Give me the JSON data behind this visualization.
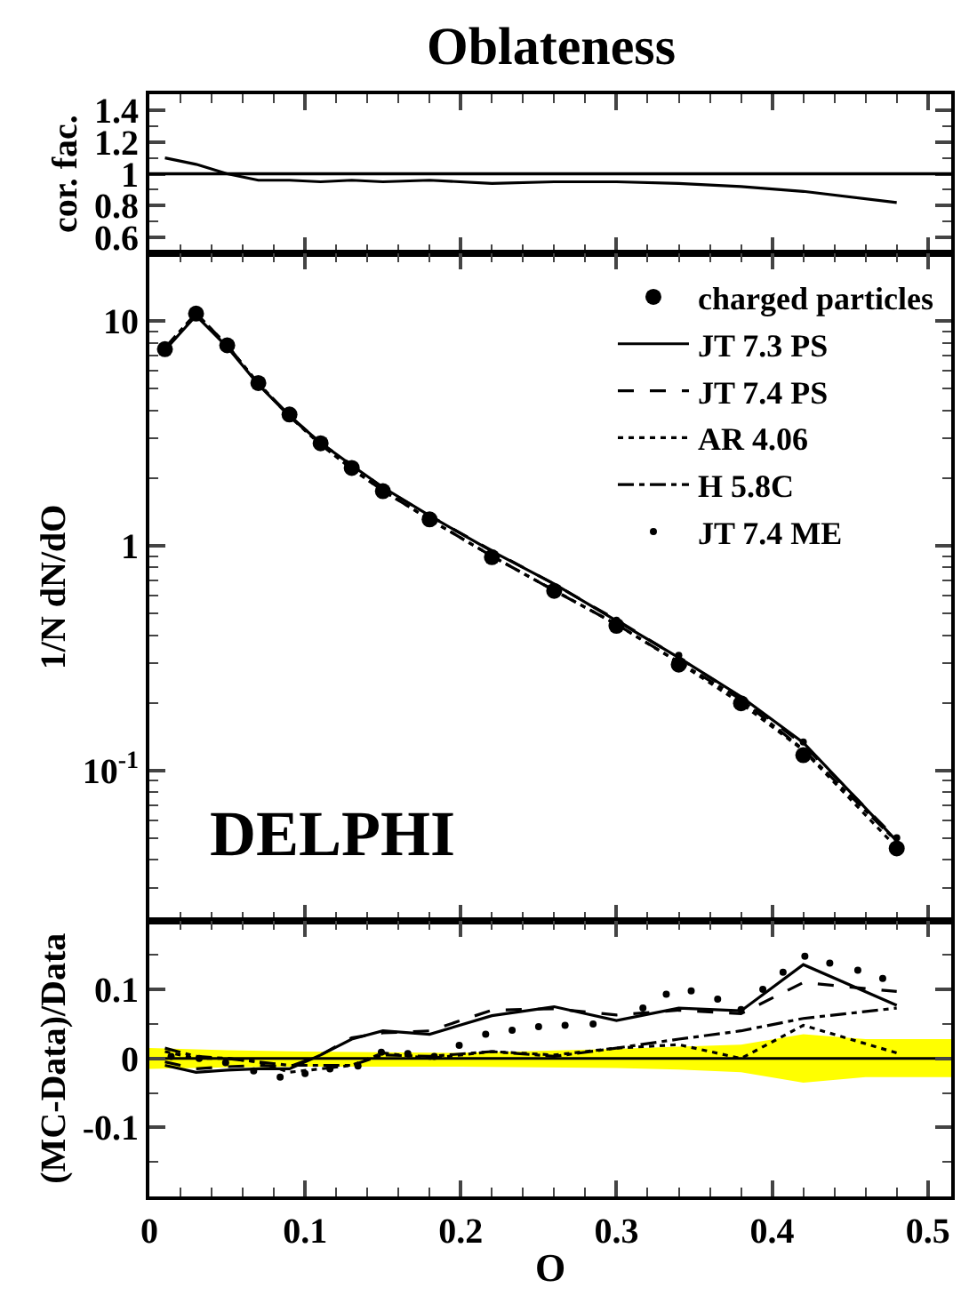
{
  "chart_data": [
    {
      "type": "line",
      "title": "Oblateness",
      "ylabel": "cor. fac.",
      "xlim": [
        0,
        0.515
      ],
      "ylim": [
        0.5,
        1.5
      ],
      "yticks": [
        0.6,
        0.8,
        1,
        1.2,
        1.4
      ],
      "xticks": [
        0,
        0.1,
        0.2,
        0.3,
        0.4,
        0.5
      ],
      "tick_labels": "y",
      "legend": false,
      "x": [
        0.01,
        0.03,
        0.05,
        0.07,
        0.09,
        0.11,
        0.13,
        0.15,
        0.18,
        0.22,
        0.26,
        0.3,
        0.34,
        0.38,
        0.42,
        0.48
      ],
      "series": [
        {
          "color": "#000000",
          "line_style": "solid",
          "values": [
            1.1,
            1.06,
            1.0,
            0.96,
            0.96,
            0.95,
            0.96,
            0.95,
            0.96,
            0.94,
            0.95,
            0.95,
            0.94,
            0.92,
            0.89,
            0.82
          ]
        }
      ],
      "ref_lines": [
        {
          "axis": "y",
          "value": 1,
          "color": "#000000"
        }
      ]
    },
    {
      "type": "line",
      "ylabel": "1/N dN/dO",
      "xlim": [
        0,
        0.515
      ],
      "ylim": [
        0.0215,
        20
      ],
      "log": "y",
      "yticks": [
        {
          "value": 0.1,
          "label": "10$^{-1}$"
        },
        1,
        10
      ],
      "xticks": [
        0,
        0.1,
        0.2,
        0.3,
        0.4,
        0.5
      ],
      "tick_labels": "y",
      "legend": "top right",
      "annotations": [
        "DELPHI"
      ],
      "x": [
        0.01,
        0.03,
        0.05,
        0.07,
        0.09,
        0.11,
        0.13,
        0.15,
        0.18,
        0.22,
        0.26,
        0.3,
        0.34,
        0.38,
        0.42,
        0.48
      ],
      "series": [
        {
          "name": "charged particles",
          "type": "scatter",
          "marker": "circle",
          "color": "#000000",
          "values": [
            7.5,
            10.8,
            7.8,
            5.3,
            3.84,
            2.86,
            2.22,
            1.75,
            1.31,
            0.89,
            0.63,
            0.44,
            0.296,
            0.199,
            0.117,
            0.045
          ]
        },
        {
          "name": "JT 7.3 PS",
          "color": "#000000",
          "line_style": "solid",
          "values": [
            7.42,
            10.58,
            7.67,
            5.22,
            3.78,
            2.87,
            2.28,
            1.82,
            1.36,
            0.945,
            0.677,
            0.464,
            0.318,
            0.213,
            0.133,
            0.0485
          ]
        },
        {
          "name": "JT 7.4 PS",
          "color": "#000000",
          "line_style": "dashed",
          "values": [
            7.46,
            10.64,
            7.71,
            5.25,
            3.79,
            2.87,
            2.29,
            1.81,
            1.36,
            0.952,
            0.675,
            0.468,
            0.317,
            0.212,
            0.13,
            0.0494
          ]
        },
        {
          "name": "AR 4.06",
          "color": "#000000",
          "line_style": "dotted",
          "values": [
            7.58,
            10.8,
            7.8,
            5.27,
            3.76,
            2.82,
            2.2,
            1.76,
            1.31,
            0.899,
            0.633,
            0.447,
            0.302,
            0.199,
            0.123,
            0.0454
          ]
        },
        {
          "name": "H 5.8C",
          "color": "#000000",
          "line_style": "dashdot",
          "values": [
            7.61,
            10.83,
            7.8,
            5.27,
            3.8,
            2.83,
            2.2,
            1.76,
            1.31,
            0.899,
            0.632,
            0.447,
            0.304,
            0.207,
            0.124,
            0.0483
          ]
        },
        {
          "name": "JT 7.4 ME",
          "type": "scatter",
          "marker": "dot",
          "color": "#000000",
          "values": [
            null,
            null,
            null,
            null,
            null,
            null,
            null,
            null,
            null,
            null,
            null,
            0.466,
            0.325,
            null,
            0.134,
            0.0502
          ]
        }
      ]
    },
    {
      "type": "line",
      "ylabel": "(MC-Data)/Data",
      "xlabel": "O",
      "xlim": [
        0,
        0.515
      ],
      "ylim": [
        -0.2,
        0.2
      ],
      "yticks": [
        -0.1,
        0,
        0.1
      ],
      "xticks": [
        0,
        0.1,
        0.2,
        0.3,
        0.4,
        0.5
      ],
      "legend": false,
      "x": [
        0.01,
        0.03,
        0.05,
        0.07,
        0.09,
        0.11,
        0.13,
        0.15,
        0.18,
        0.22,
        0.26,
        0.3,
        0.34,
        0.38,
        0.42,
        0.48
      ],
      "series": [
        {
          "type": "line",
          "color": "#000000",
          "line_style": "solid",
          "x": [
            0.0,
            0.05,
            0.1,
            0.2,
            0.3,
            0.34,
            0.38,
            0.42,
            0.46,
            0.515
          ],
          "values": [
            0,
            0,
            0,
            0,
            0,
            0,
            0,
            0,
            0,
            0
          ],
          "lower": [
            -0.015,
            -0.013,
            -0.012,
            -0.012,
            -0.014,
            -0.016,
            -0.02,
            -0.035,
            -0.027,
            -0.027
          ],
          "upper": [
            0.015,
            0.012,
            0.01,
            0.008,
            0.014,
            0.017,
            0.02,
            0.035,
            0.028,
            0.028
          ]
        },
        {
          "color": "#000000",
          "line_style": "solid",
          "values": [
            -0.01,
            -0.02,
            -0.017,
            -0.015,
            -0.015,
            0.005,
            0.028,
            0.04,
            0.035,
            0.062,
            0.075,
            0.055,
            0.073,
            0.069,
            0.136,
            0.077
          ]
        },
        {
          "color": "#000000",
          "line_style": "dashed",
          "values": [
            -0.005,
            -0.015,
            -0.012,
            -0.01,
            -0.012,
            0.005,
            0.03,
            0.037,
            0.04,
            0.07,
            0.072,
            0.063,
            0.07,
            0.065,
            0.11,
            0.097
          ]
        },
        {
          "color": "#000000",
          "line_style": "dotted",
          "values": [
            0.01,
            0,
            0,
            -0.005,
            -0.02,
            -0.015,
            -0.01,
            0.008,
            0,
            0.01,
            0.005,
            0.015,
            0.02,
            0,
            0.048,
            0.008
          ]
        },
        {
          "color": "#000000",
          "line_style": "dashdot",
          "values": [
            0.015,
            0.003,
            0,
            -0.005,
            -0.01,
            -0.01,
            -0.01,
            0.005,
            0.003,
            0.01,
            0.003,
            0.015,
            0.028,
            0.04,
            0.058,
            0.073
          ]
        },
        {
          "type": "scatter",
          "marker": "dot",
          "color": "#000000",
          "x": [
            0.014,
            0.032,
            0.049,
            0.067,
            0.084,
            0.1,
            0.116,
            0.134,
            0.149,
            0.166,
            0.183,
            0.199,
            0.216,
            0.233,
            0.25,
            0.267,
            0.285,
            0.317,
            0.332,
            0.348,
            0.365,
            0.38,
            0.394,
            0.407,
            0.421,
            0.437,
            0.455,
            0.471
          ],
          "values": [
            0.003,
            0.0,
            -0.006,
            -0.018,
            -0.027,
            -0.022,
            -0.015,
            -0.011,
            0.009,
            0.007,
            0.003,
            0.019,
            0.035,
            0.041,
            0.046,
            0.048,
            0.05,
            0.073,
            0.093,
            0.098,
            0.086,
            0.071,
            0.1,
            0.125,
            0.148,
            0.138,
            0.128,
            0.116
          ]
        }
      ]
    }
  ]
}
